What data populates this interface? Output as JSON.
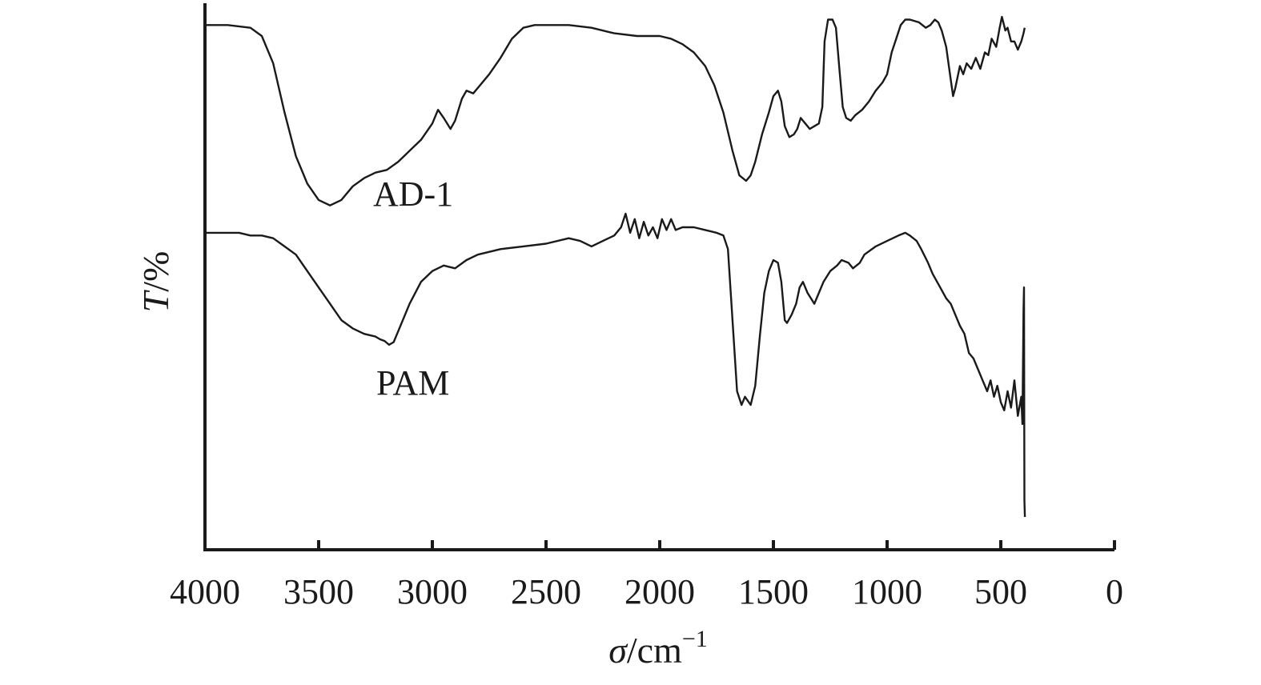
{
  "chart_data": {
    "type": "line",
    "title": "",
    "xlabel": {
      "symbol": "σ",
      "rest": "/cm",
      "superscript": "−1"
    },
    "ylabel": {
      "symbol": "T",
      "rest": "/%"
    },
    "xlim": [
      4000,
      0
    ],
    "x_reversed": true,
    "y_ticks_shown": false,
    "x_ticks": [
      4000,
      3500,
      3000,
      2500,
      2000,
      1500,
      1000,
      500,
      0
    ],
    "x_tick_labels": [
      "4000",
      "3500",
      "3000",
      "2500",
      "2000",
      "1500",
      "1000",
      "500",
      "0"
    ],
    "ylim": [
      0,
      100
    ],
    "grid": false,
    "legend": "none",
    "series": [
      {
        "name": "AD-1",
        "color": "#1a1a1a",
        "points": [
          [
            4000,
            96
          ],
          [
            3900,
            96
          ],
          [
            3800,
            95.5
          ],
          [
            3750,
            94
          ],
          [
            3700,
            89
          ],
          [
            3650,
            80
          ],
          [
            3600,
            72
          ],
          [
            3550,
            67
          ],
          [
            3500,
            64
          ],
          [
            3450,
            63
          ],
          [
            3400,
            64
          ],
          [
            3350,
            66.5
          ],
          [
            3300,
            68
          ],
          [
            3250,
            69
          ],
          [
            3200,
            69.5
          ],
          [
            3150,
            71
          ],
          [
            3100,
            73
          ],
          [
            3050,
            75
          ],
          [
            3000,
            78
          ],
          [
            2975,
            80.5
          ],
          [
            2950,
            79
          ],
          [
            2920,
            77
          ],
          [
            2900,
            78.5
          ],
          [
            2870,
            82.5
          ],
          [
            2850,
            84
          ],
          [
            2820,
            83.5
          ],
          [
            2800,
            84.5
          ],
          [
            2750,
            87
          ],
          [
            2700,
            90
          ],
          [
            2650,
            93.5
          ],
          [
            2600,
            95.5
          ],
          [
            2550,
            96
          ],
          [
            2500,
            96
          ],
          [
            2400,
            96
          ],
          [
            2300,
            95.5
          ],
          [
            2200,
            94.5
          ],
          [
            2100,
            94
          ],
          [
            2000,
            94
          ],
          [
            1950,
            93.5
          ],
          [
            1900,
            92.5
          ],
          [
            1850,
            91
          ],
          [
            1800,
            88.5
          ],
          [
            1760,
            85
          ],
          [
            1720,
            80
          ],
          [
            1680,
            73
          ],
          [
            1650,
            68.5
          ],
          [
            1620,
            67.5
          ],
          [
            1600,
            68.5
          ],
          [
            1580,
            71
          ],
          [
            1550,
            76
          ],
          [
            1520,
            80
          ],
          [
            1500,
            83
          ],
          [
            1480,
            84
          ],
          [
            1465,
            82
          ],
          [
            1450,
            77.5
          ],
          [
            1430,
            75.5
          ],
          [
            1410,
            76
          ],
          [
            1395,
            77
          ],
          [
            1380,
            79
          ],
          [
            1360,
            78
          ],
          [
            1340,
            77
          ],
          [
            1320,
            77.5
          ],
          [
            1300,
            78
          ],
          [
            1285,
            81
          ],
          [
            1275,
            93
          ],
          [
            1260,
            97
          ],
          [
            1240,
            97
          ],
          [
            1225,
            95.5
          ],
          [
            1210,
            88
          ],
          [
            1195,
            81
          ],
          [
            1180,
            79
          ],
          [
            1160,
            78.5
          ],
          [
            1140,
            79.5
          ],
          [
            1110,
            80.5
          ],
          [
            1080,
            82
          ],
          [
            1050,
            84
          ],
          [
            1020,
            85.5
          ],
          [
            1000,
            87
          ],
          [
            980,
            91
          ],
          [
            960,
            93.5
          ],
          [
            940,
            96
          ],
          [
            920,
            97
          ],
          [
            900,
            97
          ],
          [
            860,
            96.5
          ],
          [
            830,
            95.5
          ],
          [
            810,
            96
          ],
          [
            790,
            97
          ],
          [
            775,
            96.5
          ],
          [
            760,
            95
          ],
          [
            740,
            92
          ],
          [
            720,
            86
          ],
          [
            710,
            83
          ],
          [
            700,
            84.5
          ],
          [
            680,
            88.5
          ],
          [
            665,
            87
          ],
          [
            650,
            89
          ],
          [
            630,
            88
          ],
          [
            610,
            90
          ],
          [
            590,
            88
          ],
          [
            570,
            91
          ],
          [
            555,
            90.5
          ],
          [
            540,
            93.5
          ],
          [
            520,
            92
          ],
          [
            505,
            95.5
          ],
          [
            495,
            97.5
          ],
          [
            480,
            95
          ],
          [
            470,
            95.5
          ],
          [
            455,
            93
          ],
          [
            440,
            93
          ],
          [
            425,
            91.5
          ],
          [
            410,
            93
          ],
          [
            400,
            94.5
          ],
          [
            395,
            95.5
          ]
        ]
      },
      {
        "name": "PAM",
        "color": "#1a1a1a",
        "points": [
          [
            4000,
            58
          ],
          [
            3950,
            58
          ],
          [
            3900,
            58
          ],
          [
            3850,
            58
          ],
          [
            3800,
            57.5
          ],
          [
            3750,
            57.5
          ],
          [
            3700,
            57
          ],
          [
            3650,
            55.5
          ],
          [
            3600,
            54
          ],
          [
            3550,
            51
          ],
          [
            3500,
            48
          ],
          [
            3450,
            45
          ],
          [
            3400,
            42
          ],
          [
            3350,
            40.5
          ],
          [
            3300,
            39.5
          ],
          [
            3250,
            39
          ],
          [
            3230,
            38.5
          ],
          [
            3210,
            38.2
          ],
          [
            3190,
            37.5
          ],
          [
            3170,
            38
          ],
          [
            3150,
            40
          ],
          [
            3100,
            45
          ],
          [
            3050,
            49
          ],
          [
            3000,
            51
          ],
          [
            2950,
            52
          ],
          [
            2900,
            51.5
          ],
          [
            2850,
            53
          ],
          [
            2800,
            54
          ],
          [
            2700,
            55
          ],
          [
            2600,
            55.5
          ],
          [
            2500,
            56
          ],
          [
            2400,
            57
          ],
          [
            2350,
            56.5
          ],
          [
            2300,
            55.5
          ],
          [
            2250,
            56.5
          ],
          [
            2200,
            57.5
          ],
          [
            2170,
            59
          ],
          [
            2150,
            61.5
          ],
          [
            2130,
            58
          ],
          [
            2110,
            60.5
          ],
          [
            2090,
            57
          ],
          [
            2070,
            60
          ],
          [
            2050,
            57.5
          ],
          [
            2030,
            59
          ],
          [
            2010,
            57
          ],
          [
            1990,
            60.5
          ],
          [
            1970,
            58.5
          ],
          [
            1950,
            60.5
          ],
          [
            1930,
            58.5
          ],
          [
            1900,
            59
          ],
          [
            1850,
            59
          ],
          [
            1800,
            58.5
          ],
          [
            1750,
            58
          ],
          [
            1720,
            57.5
          ],
          [
            1700,
            55
          ],
          [
            1680,
            42
          ],
          [
            1660,
            29
          ],
          [
            1640,
            26.5
          ],
          [
            1625,
            28
          ],
          [
            1600,
            26.5
          ],
          [
            1580,
            30
          ],
          [
            1560,
            39
          ],
          [
            1540,
            47
          ],
          [
            1520,
            51
          ],
          [
            1500,
            53
          ],
          [
            1480,
            52.5
          ],
          [
            1465,
            49
          ],
          [
            1450,
            42
          ],
          [
            1440,
            41.5
          ],
          [
            1420,
            43
          ],
          [
            1400,
            45
          ],
          [
            1385,
            48
          ],
          [
            1370,
            49
          ],
          [
            1350,
            47
          ],
          [
            1320,
            45
          ],
          [
            1300,
            47
          ],
          [
            1280,
            49
          ],
          [
            1250,
            51
          ],
          [
            1220,
            52
          ],
          [
            1200,
            53
          ],
          [
            1170,
            52.5
          ],
          [
            1150,
            51.5
          ],
          [
            1120,
            52.5
          ],
          [
            1100,
            54
          ],
          [
            1050,
            55.5
          ],
          [
            1000,
            56.5
          ],
          [
            950,
            57.5
          ],
          [
            920,
            58
          ],
          [
            900,
            57.5
          ],
          [
            870,
            56.5
          ],
          [
            850,
            55
          ],
          [
            820,
            52.5
          ],
          [
            800,
            50.5
          ],
          [
            780,
            49
          ],
          [
            760,
            47.5
          ],
          [
            740,
            46
          ],
          [
            720,
            45
          ],
          [
            700,
            43
          ],
          [
            680,
            41
          ],
          [
            660,
            39.5
          ],
          [
            640,
            36
          ],
          [
            620,
            35
          ],
          [
            600,
            33
          ],
          [
            580,
            31
          ],
          [
            560,
            29
          ],
          [
            545,
            31
          ],
          [
            530,
            28
          ],
          [
            515,
            30
          ],
          [
            500,
            27
          ],
          [
            485,
            25.5
          ],
          [
            470,
            29
          ],
          [
            455,
            26
          ],
          [
            440,
            31
          ],
          [
            425,
            24.5
          ],
          [
            410,
            28
          ],
          [
            405,
            23
          ],
          [
            400,
            44
          ],
          [
            398,
            48
          ],
          [
            396,
            9
          ],
          [
            394,
            6
          ]
        ]
      }
    ]
  }
}
